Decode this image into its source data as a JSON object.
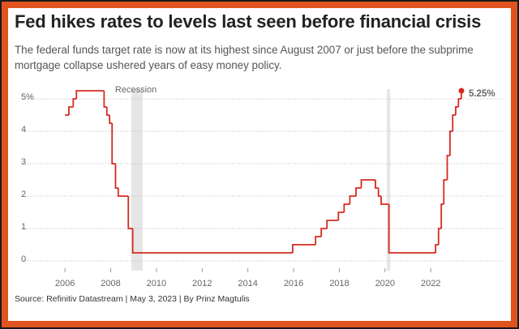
{
  "chart_data": {
    "type": "step",
    "title": "Fed hikes rates to levels last seen before financial crisis",
    "subtitle": "The federal funds target rate is now at its highest since August 2007 or just before the subprime mortgage collapse ushered years of easy money policy.",
    "source": "Source: Refinitiv Datastream | May 3, 2023 | By Prinz Magtulis",
    "recession_label": "Recession",
    "recessions": [
      [
        2008.9,
        2009.4
      ],
      [
        2020.08,
        2020.23
      ]
    ],
    "xlim": [
      2004.15,
      2025.15
    ],
    "xticks": [
      2006,
      2008,
      2010,
      2012,
      2014,
      2016,
      2018,
      2020,
      2022
    ],
    "ylim": [
      -0.3,
      5.3
    ],
    "yticks": [
      0,
      1,
      2,
      3,
      4,
      {
        "value": 5,
        "label": "5%"
      }
    ],
    "grid": true,
    "series": [
      {
        "name": "Fed funds target rate",
        "color": "#d62a20",
        "x": [
          2006.0,
          2006.17,
          2006.36,
          2006.5,
          2007.71,
          2007.83,
          2007.95,
          2008.06,
          2008.21,
          2008.33,
          2008.77,
          2008.83,
          2008.96,
          2015.96,
          2016.96,
          2017.21,
          2017.46,
          2017.96,
          2018.21,
          2018.46,
          2018.73,
          2018.96,
          2019.58,
          2019.71,
          2019.83,
          2020.17,
          2022.21,
          2022.34,
          2022.46,
          2022.57,
          2022.72,
          2022.84,
          2022.96,
          2023.09,
          2023.21,
          2023.34
        ],
        "values": [
          4.5,
          4.75,
          5.0,
          5.25,
          4.75,
          4.5,
          4.25,
          3.0,
          2.25,
          2.0,
          1.0,
          1.0,
          0.25,
          0.5,
          0.75,
          1.0,
          1.25,
          1.5,
          1.75,
          2.0,
          2.25,
          2.5,
          2.25,
          2.0,
          1.75,
          0.25,
          0.5,
          1.0,
          1.75,
          2.5,
          3.25,
          4.0,
          4.5,
          4.75,
          5.0,
          5.25
        ],
        "end_label": "5.25%"
      }
    ]
  }
}
